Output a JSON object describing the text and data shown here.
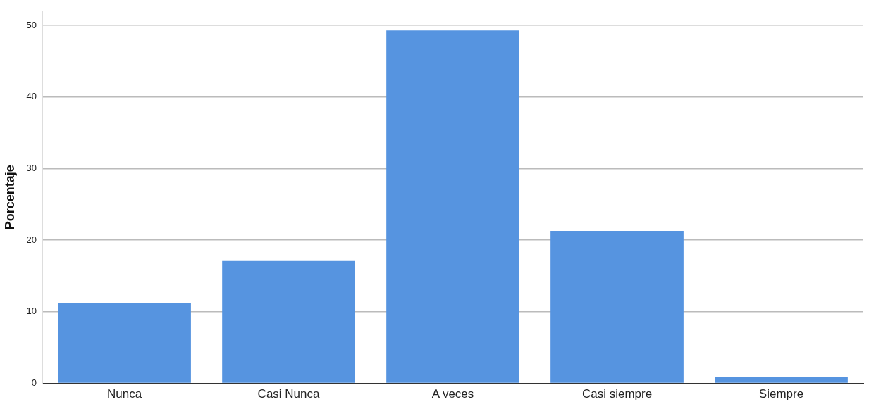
{
  "chart_data": {
    "type": "bar",
    "ylabel": "Porcentaje",
    "categories": [
      "Nunca",
      "Casi Nunca",
      "A veces",
      "Casi siempre",
      "Siempre"
    ],
    "values": [
      11.2,
      17.1,
      49.3,
      21.3,
      0.9
    ],
    "color": "#5694e0",
    "ylim": [
      0,
      52
    ],
    "yticks": [
      0,
      10,
      20,
      30,
      40,
      50
    ],
    "grid": "y",
    "legend": false
  }
}
